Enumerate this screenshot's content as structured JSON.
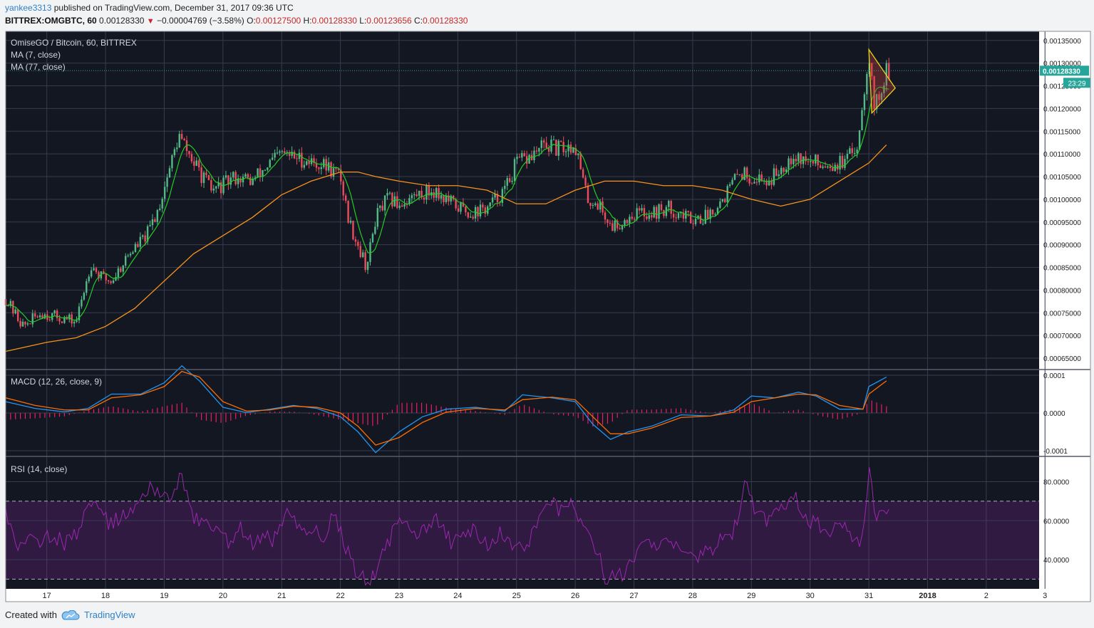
{
  "header": {
    "user": "yankee3313",
    "published": " published on TradingView.com, December 31, 2017 09:36 UTC",
    "symbol": "BITTREX:OMGBTC, 60",
    "last": "0.00128330",
    "change": "−0.00004769 (−3.58%)",
    "o_label": "O:",
    "o": "0.00127500",
    "h_label": "H:",
    "h": "0.00128330",
    "l_label": "L:",
    "l": "0.00123656",
    "c_label": "C:",
    "c": "0.00128330"
  },
  "footer": {
    "created": "Created with",
    "brand": "TradingView"
  },
  "colors": {
    "background": "#131722",
    "grid": "#363c4e",
    "up": "#53b987",
    "down": "#eb4d5c",
    "ma7": "#22cc22",
    "ma77": "#f7931a",
    "macd": "#2196f3",
    "signal": "#ff6d00",
    "hist": "#e91e63",
    "rsi": "#9c27b0",
    "pattern": "#e6d31a",
    "price_label": "#26a69a"
  },
  "chart_data": [
    {
      "type": "candlestick",
      "title": "OmiseGO / Bitcoin, 60, BITTREX",
      "legend": [
        "MA (7, close)",
        "MA (77, close)"
      ],
      "x_ticks": [
        "17",
        "18",
        "19",
        "20",
        "21",
        "22",
        "23",
        "24",
        "25",
        "26",
        "27",
        "28",
        "29",
        "30",
        "31",
        "2018",
        "2",
        "3"
      ],
      "ylim": [
        0.000625,
        0.00137
      ],
      "y_ticks": [
        "0.00135000",
        "0.00130000",
        "0.00125000",
        "0.00120000",
        "0.00115000",
        "0.00110000",
        "0.00105000",
        "0.00100000",
        "0.00095000",
        "0.00090000",
        "0.00085000",
        "0.00080000",
        "0.00075000",
        "0.00070000",
        "0.00065000"
      ],
      "last_price_label": "0.00128330",
      "countdown_label": "23:29",
      "price_series": {
        "x": [
          16.3,
          16.6,
          16.9,
          17.2,
          17.5,
          17.75,
          17.9,
          18.1,
          18.4,
          18.7,
          18.9,
          19.05,
          19.25,
          19.5,
          19.8,
          20.0,
          20.2,
          20.5,
          20.8,
          21.0,
          21.3,
          21.6,
          21.8,
          22.0,
          22.15,
          22.3,
          22.45,
          22.6,
          22.8,
          23.0,
          23.3,
          23.6,
          23.9,
          24.2,
          24.5,
          24.8,
          25.0,
          25.2,
          25.5,
          25.7,
          26.0,
          26.2,
          26.4,
          26.6,
          26.8,
          27.0,
          27.3,
          27.6,
          27.9,
          28.2,
          28.5,
          28.8,
          29.0,
          29.3,
          29.5,
          29.7,
          30.0,
          30.3,
          30.6,
          30.8,
          30.9,
          31.0,
          31.1,
          31.2,
          31.3
        ],
        "close": [
          0.00078,
          0.00072,
          0.00075,
          0.00074,
          0.00073,
          0.00086,
          0.00083,
          0.00082,
          0.00088,
          0.00092,
          0.00098,
          0.00105,
          0.00114,
          0.00108,
          0.00102,
          0.00103,
          0.00105,
          0.00104,
          0.00108,
          0.0011,
          0.00109,
          0.00108,
          0.00107,
          0.00105,
          0.00095,
          0.0009,
          0.00085,
          0.00096,
          0.001,
          0.00099,
          0.00101,
          0.00102,
          0.00099,
          0.00097,
          0.00098,
          0.00102,
          0.00108,
          0.00109,
          0.00112,
          0.00111,
          0.00112,
          0.001,
          0.00099,
          0.00094,
          0.00095,
          0.00097,
          0.00097,
          0.00098,
          0.00096,
          0.00096,
          0.001,
          0.00106,
          0.00105,
          0.00104,
          0.00107,
          0.0011,
          0.00108,
          0.00108,
          0.00108,
          0.00112,
          0.00122,
          0.00133,
          0.0012,
          0.00124,
          0.00128
        ]
      },
      "ma77_series": {
        "x": [
          16.3,
          17.0,
          17.5,
          18.0,
          18.5,
          19.0,
          19.5,
          20.0,
          20.5,
          21.0,
          21.5,
          22.0,
          22.3,
          22.6,
          23.0,
          23.5,
          24.0,
          24.5,
          25.0,
          25.5,
          26.0,
          26.5,
          27.0,
          27.5,
          28.0,
          28.5,
          29.0,
          29.5,
          30.0,
          30.5,
          31.0,
          31.3
        ],
        "y": [
          0.000665,
          0.000685,
          0.000695,
          0.00072,
          0.00076,
          0.00082,
          0.00088,
          0.00092,
          0.00096,
          0.00101,
          0.00104,
          0.00106,
          0.00106,
          0.00105,
          0.00104,
          0.00103,
          0.00103,
          0.00102,
          0.00099,
          0.00099,
          0.00102,
          0.00104,
          0.00104,
          0.00103,
          0.00103,
          0.00102,
          0.001,
          0.000985,
          0.001,
          0.00104,
          0.00108,
          0.00112
        ]
      },
      "pattern": {
        "shape": "triangle",
        "points": [
          [
            31.0,
            0.00133
          ],
          [
            31.45,
            0.001245
          ],
          [
            31.05,
            0.00119
          ]
        ]
      }
    },
    {
      "type": "line",
      "title": "MACD (12, 26, close, 9)",
      "ylim": [
        -0.000115,
        0.000115
      ],
      "y_ticks": [
        "0.0001",
        "0.0000",
        "-0.0001"
      ],
      "series": [
        {
          "name": "MACD",
          "x": [
            16.3,
            16.8,
            17.3,
            17.7,
            18.1,
            18.6,
            19.0,
            19.3,
            19.6,
            20.0,
            20.4,
            20.8,
            21.2,
            21.6,
            22.0,
            22.3,
            22.6,
            23.0,
            23.4,
            23.8,
            24.3,
            24.8,
            25.1,
            25.6,
            26.0,
            26.3,
            26.6,
            26.9,
            27.3,
            27.8,
            28.3,
            28.7,
            29.0,
            29.4,
            29.8,
            30.1,
            30.5,
            30.9,
            31.0,
            31.3
          ],
          "y": [
            3e-05,
            1.2e-05,
            3e-06,
            1.2e-05,
            5e-05,
            5e-05,
            8e-05,
            0.000125,
            8.5e-05,
            1.5e-05,
            1e-06,
            1e-05,
            2e-05,
            1.2e-05,
            -1e-05,
            -5e-05,
            -0.000105,
            -5e-05,
            -1e-05,
            1e-05,
            1.5e-05,
            5e-06,
            4.8e-05,
            4e-05,
            3e-05,
            -3e-05,
            -7e-05,
            -5e-05,
            -3.5e-05,
            -5e-06,
            -8e-06,
            8e-06,
            4.5e-05,
            4e-05,
            5.5e-05,
            4.5e-05,
            1e-05,
            1e-05,
            7e-05,
            9.5e-05
          ]
        },
        {
          "name": "Signal",
          "x": [
            16.3,
            16.8,
            17.3,
            17.7,
            18.1,
            18.6,
            19.0,
            19.3,
            19.6,
            20.0,
            20.4,
            20.8,
            21.2,
            21.6,
            22.0,
            22.3,
            22.6,
            23.0,
            23.4,
            23.8,
            24.3,
            24.8,
            25.1,
            25.6,
            26.0,
            26.3,
            26.6,
            26.9,
            27.3,
            27.8,
            28.3,
            28.7,
            29.0,
            29.4,
            29.8,
            30.1,
            30.5,
            30.9,
            31.0,
            31.3
          ],
          "y": [
            4e-05,
            2e-05,
            8e-06,
            8e-06,
            4e-05,
            4.8e-05,
            7e-05,
            0.00011,
            9.5e-05,
            3e-05,
            5e-06,
            8e-06,
            1.8e-05,
            1.5e-05,
            0.0,
            -3.5e-05,
            -8.5e-05,
            -6.5e-05,
            -2.5e-05,
            2e-06,
            1.2e-05,
            8e-06,
            3.5e-05,
            4.2e-05,
            3.5e-05,
            -1e-05,
            -5.5e-05,
            -5.5e-05,
            -4e-05,
            -1.2e-05,
            -8e-06,
            2e-06,
            3e-05,
            4e-05,
            5e-05,
            4.8e-05,
            2e-05,
            1e-05,
            5e-05,
            8.5e-05
          ]
        }
      ]
    },
    {
      "type": "line",
      "title": "RSI (14, close)",
      "ylim": [
        25,
        93
      ],
      "y_ticks": [
        "80.0000",
        "60.0000",
        "40.0000"
      ],
      "bands": [
        30,
        70
      ],
      "series": [
        {
          "name": "RSI",
          "x": [
            16.3,
            16.5,
            16.7,
            16.9,
            17.1,
            17.3,
            17.5,
            17.7,
            17.9,
            18.1,
            18.3,
            18.5,
            18.7,
            18.9,
            19.1,
            19.3,
            19.5,
            19.7,
            19.9,
            20.1,
            20.3,
            20.5,
            20.7,
            20.9,
            21.1,
            21.3,
            21.5,
            21.7,
            21.9,
            22.1,
            22.3,
            22.5,
            22.7,
            22.9,
            23.1,
            23.3,
            23.5,
            23.7,
            23.9,
            24.1,
            24.3,
            24.5,
            24.7,
            24.9,
            25.1,
            25.3,
            25.5,
            25.7,
            25.9,
            26.1,
            26.3,
            26.5,
            26.7,
            26.9,
            27.1,
            27.3,
            27.5,
            27.7,
            27.9,
            28.1,
            28.3,
            28.5,
            28.7,
            28.9,
            29.1,
            29.3,
            29.5,
            29.7,
            29.9,
            30.1,
            30.3,
            30.5,
            30.7,
            30.9,
            31.0,
            31.1,
            31.2,
            31.3
          ],
          "y": [
            62,
            48,
            55,
            50,
            53,
            48,
            52,
            72,
            62,
            58,
            63,
            65,
            78,
            72,
            70,
            85,
            60,
            58,
            56,
            48,
            55,
            47,
            52,
            50,
            63,
            58,
            55,
            52,
            65,
            45,
            32,
            28,
            40,
            55,
            62,
            52,
            58,
            60,
            48,
            52,
            55,
            48,
            53,
            50,
            45,
            55,
            72,
            65,
            70,
            60,
            50,
            32,
            30,
            35,
            45,
            50,
            48,
            47,
            42,
            40,
            45,
            50,
            55,
            78,
            62,
            60,
            65,
            75,
            62,
            58,
            55,
            58,
            52,
            50,
            88,
            62,
            65,
            68
          ]
        }
      ]
    }
  ]
}
